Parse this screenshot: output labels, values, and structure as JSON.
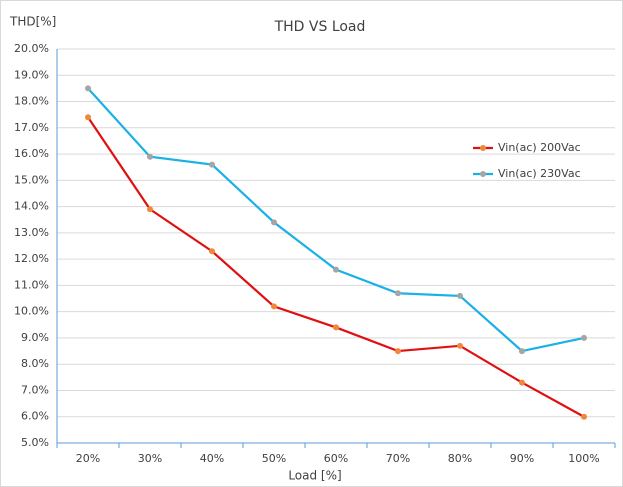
{
  "chart_data": {
    "type": "line",
    "title": "THD VS Load",
    "y_label": "THD[%]",
    "x_label": "Load [%]",
    "categories": [
      "20%",
      "30%",
      "40%",
      "50%",
      "60%",
      "70%",
      "80%",
      "90%",
      "100%"
    ],
    "series": [
      {
        "name": "Vin(ac) 200Vac",
        "color": "#e01010",
        "marker_color": "#f0883a",
        "values": [
          17.4,
          13.9,
          12.3,
          10.2,
          9.4,
          8.5,
          8.7,
          7.3,
          6.0
        ]
      },
      {
        "name": "Vin(ac) 230Vac",
        "color": "#1ab0e8",
        "marker_color": "#a5a5a5",
        "values": [
          18.5,
          15.9,
          15.6,
          13.4,
          11.6,
          10.7,
          10.6,
          8.5,
          9.0
        ]
      }
    ],
    "ylim": [
      5,
      20
    ],
    "yticks": [
      {
        "value": 5,
        "label": "5.0%"
      },
      {
        "value": 6,
        "label": "6.0%"
      },
      {
        "value": 7,
        "label": "7.0%"
      },
      {
        "value": 8,
        "label": "8.0%"
      },
      {
        "value": 9,
        "label": "9.0%"
      },
      {
        "value": 10,
        "label": "10.0%"
      },
      {
        "value": 11,
        "label": "11.0%"
      },
      {
        "value": 12,
        "label": "12.0%"
      },
      {
        "value": 13,
        "label": "13.0%"
      },
      {
        "value": 14,
        "label": "14.0%"
      },
      {
        "value": 15,
        "label": "15.0%"
      },
      {
        "value": 16,
        "label": "16.0%"
      },
      {
        "value": 17,
        "label": "17.0%"
      },
      {
        "value": 18,
        "label": "18.0%"
      },
      {
        "value": 19,
        "label": "19.0%"
      },
      {
        "value": 20,
        "label": "20.0%"
      }
    ],
    "grid": true,
    "legend": "right"
  }
}
